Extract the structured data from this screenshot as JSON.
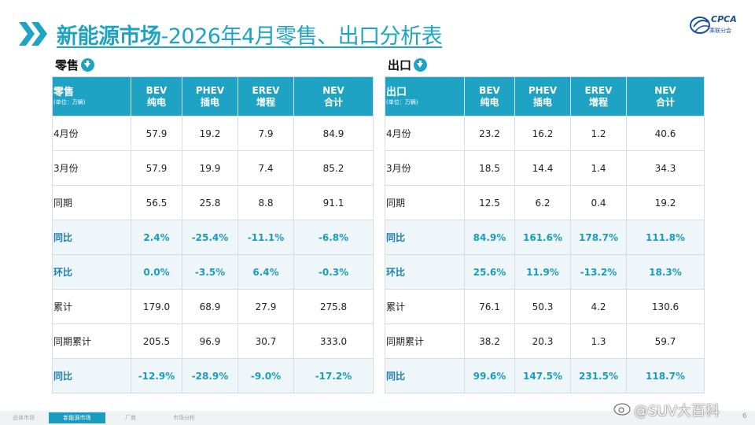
{
  "header": {
    "title_bold": "新能源市场",
    "title_rest": "-2026年4月零售、出口分析表",
    "logo_text": "CPCA",
    "logo_sub": "乘联分会"
  },
  "retail": {
    "section_label": "零售",
    "header": {
      "first": "零售",
      "unit": "(单位：万辆)",
      "cols": [
        {
          "en": "BEV",
          "cn": "纯电"
        },
        {
          "en": "PHEV",
          "cn": "插电"
        },
        {
          "en": "EREV",
          "cn": "增程"
        },
        {
          "en": "NEV",
          "cn": "合计"
        }
      ]
    },
    "rows": [
      {
        "label": "4月份",
        "values": [
          "57.9",
          "19.2",
          "7.9",
          "84.9"
        ]
      },
      {
        "label": "3月份",
        "values": [
          "57.9",
          "19.9",
          "7.4",
          "85.2"
        ]
      },
      {
        "label": "同期",
        "values": [
          "56.5",
          "25.8",
          "8.8",
          "91.1"
        ]
      },
      {
        "label": "同比",
        "values": [
          "2.4%",
          "-25.4%",
          "-11.1%",
          "-6.8%"
        ]
      },
      {
        "label": "环比",
        "values": [
          "0.0%",
          "-3.5%",
          "6.4%",
          "-0.3%"
        ]
      },
      {
        "label": "累计",
        "values": [
          "179.0",
          "68.9",
          "27.9",
          "275.8"
        ]
      },
      {
        "label": "同期累计",
        "values": [
          "205.5",
          "96.9",
          "30.7",
          "333.0"
        ]
      },
      {
        "label": "同比",
        "values": [
          "-12.9%",
          "-28.9%",
          "-9.0%",
          "-17.2%"
        ]
      }
    ]
  },
  "export": {
    "section_label": "出口",
    "header": {
      "first": "出口",
      "unit": "(单位：万辆)",
      "cols": [
        {
          "en": "BEV",
          "cn": "纯电"
        },
        {
          "en": "PHEV",
          "cn": "插电"
        },
        {
          "en": "EREV",
          "cn": "增程"
        },
        {
          "en": "NEV",
          "cn": "合计"
        }
      ]
    },
    "rows": [
      {
        "label": "4月份",
        "values": [
          "23.2",
          "16.2",
          "1.2",
          "40.6"
        ]
      },
      {
        "label": "3月份",
        "values": [
          "18.5",
          "14.4",
          "1.4",
          "34.3"
        ]
      },
      {
        "label": "同期",
        "values": [
          "12.5",
          "6.2",
          "0.4",
          "19.2"
        ]
      },
      {
        "label": "同比",
        "values": [
          "84.9%",
          "161.6%",
          "178.7%",
          "111.8%"
        ]
      },
      {
        "label": "环比",
        "values": [
          "25.6%",
          "11.9%",
          "-13.2%",
          "18.3%"
        ]
      },
      {
        "label": "累计",
        "values": [
          "76.1",
          "50.3",
          "4.2",
          "130.6"
        ]
      },
      {
        "label": "同期累计",
        "values": [
          "38.2",
          "20.3",
          "1.3",
          "59.7"
        ]
      },
      {
        "label": "同比",
        "values": [
          "99.6%",
          "147.5%",
          "231.5%",
          "118.7%"
        ]
      }
    ]
  },
  "footer": {
    "tabs": [
      "总体市场",
      "新能源市场",
      "厂商",
      "市场分析"
    ],
    "active_tab": 1,
    "page": "6",
    "watermark": "@SUV大百科"
  },
  "colors": {
    "accent": "#1fa3c4",
    "highlight_text": "#1a9bbf",
    "highlight_bg": "#eef6fa"
  }
}
